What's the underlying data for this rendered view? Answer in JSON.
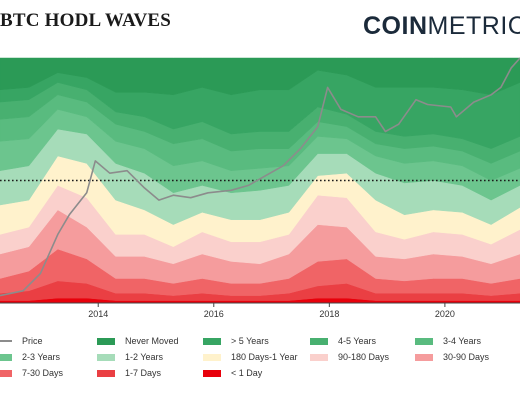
{
  "chart_data": {
    "type": "area",
    "title": "BTC HODL WAVES",
    "brand": {
      "bold": "COIN",
      "light": "METRICS"
    },
    "x_ticks": [
      "2014",
      "2016",
      "2018",
      "2020"
    ],
    "x_tick_years": [
      2014,
      2016,
      2018,
      2020
    ],
    "xlim": [
      2012.3,
      2021.3
    ],
    "ylim_percent": [
      0,
      100
    ],
    "reference_line_percent": 50,
    "x_years": [
      2012.3,
      2012.8,
      2013.3,
      2013.8,
      2014.3,
      2014.8,
      2015.3,
      2015.8,
      2016.3,
      2016.8,
      2017.3,
      2017.8,
      2018.3,
      2018.8,
      2019.3,
      2019.8,
      2020.3,
      2020.8,
      2021.3
    ],
    "series": [
      {
        "name": "< 1 Day",
        "color": "#e8000b",
        "values": [
          1,
          1,
          2,
          2,
          1,
          1,
          1,
          1,
          1,
          1,
          1,
          2,
          2,
          1,
          1,
          1,
          1,
          1,
          1
        ]
      },
      {
        "name": "1-7 Days",
        "color": "#ea3f43",
        "values": [
          3,
          4,
          7,
          6,
          3,
          3,
          2,
          3,
          2,
          2,
          3,
          5,
          6,
          3,
          3,
          3,
          3,
          2,
          3
        ]
      },
      {
        "name": "7-30 Days",
        "color": "#f06466",
        "values": [
          6,
          8,
          13,
          10,
          6,
          6,
          5,
          6,
          5,
          5,
          6,
          10,
          10,
          6,
          5,
          6,
          6,
          5,
          6
        ]
      },
      {
        "name": "30-90 Days",
        "color": "#f59c9d",
        "values": [
          10,
          10,
          16,
          13,
          9,
          9,
          8,
          10,
          9,
          8,
          10,
          15,
          13,
          9,
          9,
          10,
          9,
          8,
          10
        ]
      },
      {
        "name": "90-180 Days",
        "color": "#fad0cc",
        "values": [
          8,
          8,
          10,
          12,
          9,
          9,
          7,
          9,
          8,
          9,
          8,
          12,
          12,
          10,
          8,
          9,
          9,
          8,
          10
        ]
      },
      {
        "name": "180 Days-1 Year",
        "color": "#fff2cc",
        "values": [
          12,
          11,
          12,
          14,
          14,
          10,
          9,
          8,
          9,
          9,
          9,
          8,
          10,
          13,
          10,
          9,
          9,
          8,
          9
        ]
      },
      {
        "name": "1-2 Years",
        "color": "#a6dcb9",
        "values": [
          14,
          14,
          11,
          12,
          15,
          15,
          13,
          11,
          11,
          12,
          11,
          9,
          8,
          11,
          13,
          12,
          11,
          10,
          9
        ]
      },
      {
        "name": "2-3 Years",
        "color": "#6cc58e",
        "values": [
          12,
          11,
          8,
          7,
          9,
          10,
          11,
          10,
          9,
          9,
          8,
          7,
          6,
          7,
          8,
          8,
          8,
          8,
          7
        ]
      },
      {
        "name": "3-4 Years",
        "color": "#59bb7f",
        "values": [
          9,
          9,
          6,
          6,
          7,
          7,
          9,
          9,
          8,
          8,
          7,
          6,
          5,
          5,
          6,
          6,
          6,
          7,
          7
        ]
      },
      {
        "name": "4-5 Years",
        "color": "#48b070",
        "values": [
          7,
          7,
          5,
          5,
          5,
          6,
          6,
          7,
          7,
          7,
          7,
          6,
          5,
          5,
          5,
          5,
          5,
          6,
          6
        ]
      },
      {
        "name": "> 5 Years",
        "color": "#37a563",
        "values": [
          5,
          5,
          4,
          5,
          8,
          10,
          14,
          14,
          16,
          17,
          17,
          15,
          16,
          18,
          20,
          19,
          20,
          22,
          22
        ]
      },
      {
        "name": "Never Moved",
        "color": "#2b9a56",
        "values": [
          13,
          12,
          6,
          8,
          14,
          14,
          15,
          12,
          15,
          13,
          13,
          5,
          7,
          12,
          12,
          12,
          13,
          15,
          10
        ]
      }
    ],
    "price": {
      "name": "Price",
      "color": "#8c8c8c",
      "x_years": [
        2012.3,
        2012.7,
        2013.0,
        2013.3,
        2013.5,
        2013.8,
        2013.95,
        2014.2,
        2014.5,
        2014.8,
        2015.05,
        2015.3,
        2015.6,
        2015.9,
        2016.3,
        2016.6,
        2016.9,
        2017.2,
        2017.5,
        2017.8,
        2017.97,
        2018.2,
        2018.5,
        2018.8,
        2018.97,
        2019.2,
        2019.5,
        2019.7,
        2020.1,
        2020.2,
        2020.5,
        2020.8,
        2020.97,
        2021.15,
        2021.3
      ],
      "values_percent": [
        3,
        5,
        12,
        28,
        36,
        45,
        58,
        53,
        54,
        47,
        42,
        44,
        43,
        45,
        46,
        48,
        52,
        56,
        63,
        72,
        88,
        79,
        76,
        76,
        70,
        73,
        83,
        81,
        80,
        76,
        82,
        85,
        88,
        96,
        100
      ]
    },
    "legend": [
      {
        "label": "Price",
        "kind": "line",
        "color": "#8c8c8c"
      },
      {
        "label": "Never Moved",
        "kind": "swatch",
        "color": "#2b9a56"
      },
      {
        "label": "> 5 Years",
        "kind": "swatch",
        "color": "#37a563"
      },
      {
        "label": "4-5 Years",
        "kind": "swatch",
        "color": "#48b070"
      },
      {
        "label": "3-4 Years",
        "kind": "swatch",
        "color": "#59bb7f"
      },
      {
        "label": "2-3 Years",
        "kind": "swatch",
        "color": "#6cc58e"
      },
      {
        "label": "1-2 Years",
        "kind": "swatch",
        "color": "#a6dcb9"
      },
      {
        "label": "180 Days-1 Year",
        "kind": "swatch",
        "color": "#fff2cc"
      },
      {
        "label": "90-180 Days",
        "kind": "swatch",
        "color": "#fad0cc"
      },
      {
        "label": "30-90 Days",
        "kind": "swatch",
        "color": "#f59c9d"
      },
      {
        "label": "7-30 Days",
        "kind": "swatch",
        "color": "#f06466"
      },
      {
        "label": "1-7 Days",
        "kind": "swatch",
        "color": "#ea3f43"
      },
      {
        "label": "< 1 Day",
        "kind": "swatch",
        "color": "#e8000b"
      }
    ],
    "legend_placement": "bottom",
    "grid": false
  }
}
